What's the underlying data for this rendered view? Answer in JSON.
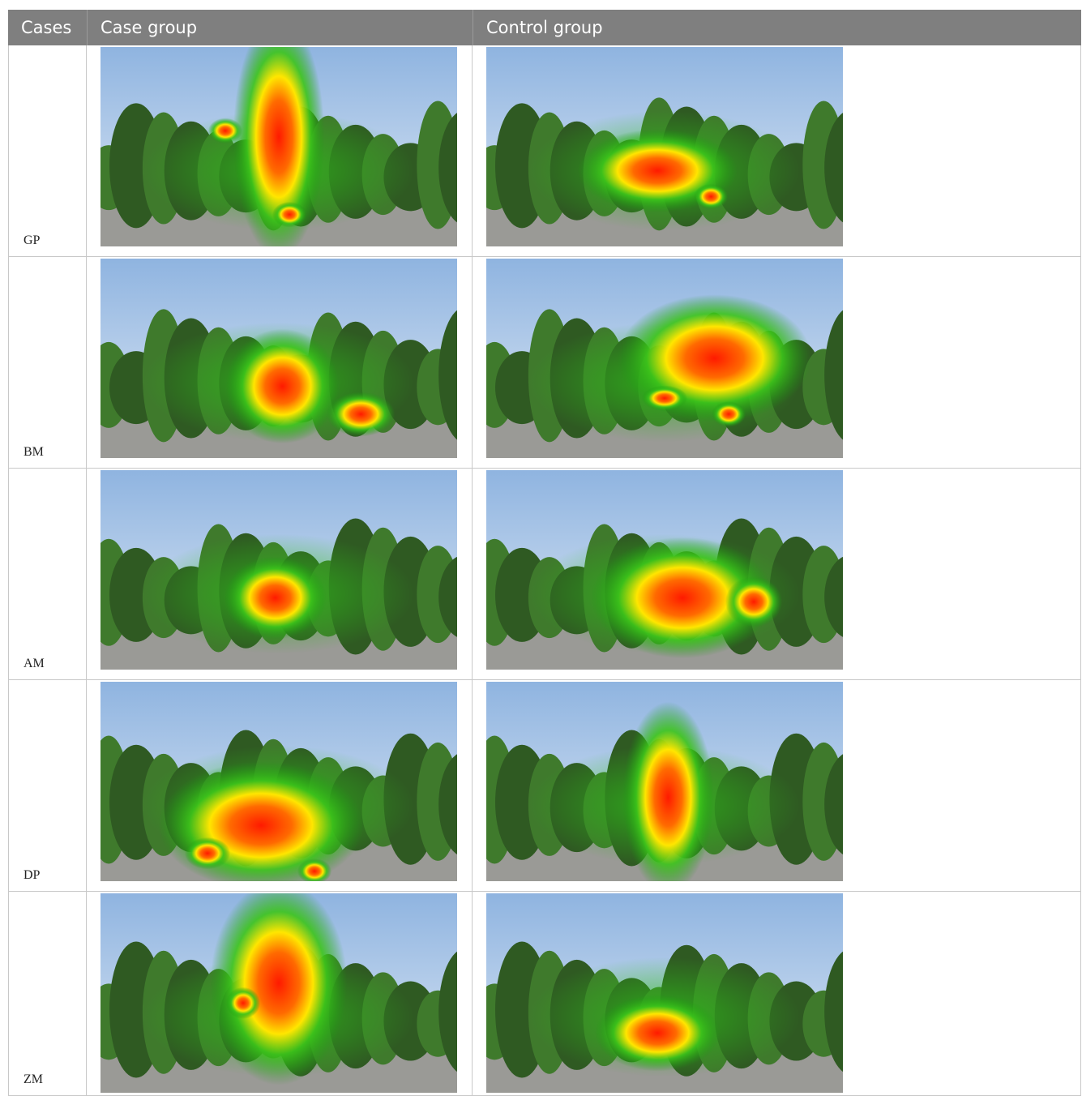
{
  "table": {
    "header": [
      "Cases",
      "Case group",
      "Control group"
    ],
    "rows": [
      "GP",
      "BM",
      "AM",
      "DP",
      "ZM"
    ]
  }
}
